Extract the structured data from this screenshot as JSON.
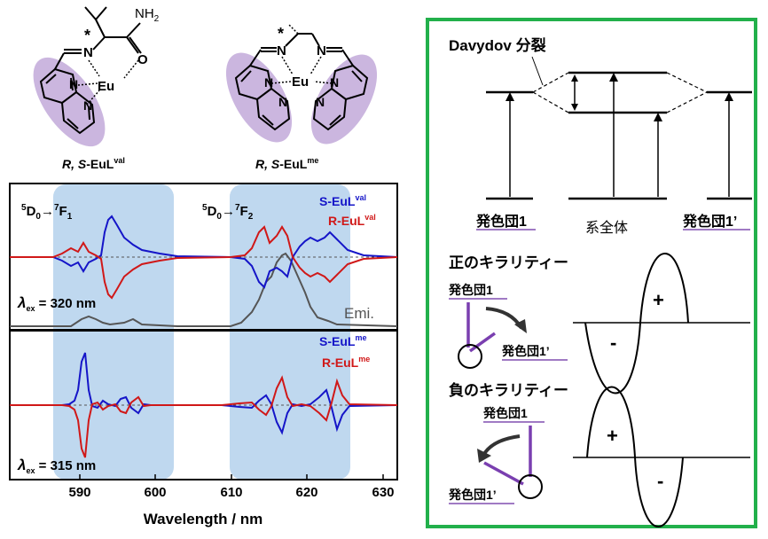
{
  "molecules": {
    "left": {
      "prefix": "R, S",
      "base": "-EuL",
      "sup": "val",
      "nh2": "NH",
      "nh2_sub": "2",
      "o": "O",
      "n_imine": "N",
      "star": "*",
      "eu": "Eu",
      "n_py1": "N",
      "n_py2": "N"
    },
    "right": {
      "prefix": "R, S",
      "base": "-EuL",
      "sup": "me",
      "star": "*",
      "eu": "Eu",
      "n_imine1": "N",
      "n_imine2": "N",
      "n_py1": "N",
      "n_py2": "N",
      "n_py3": "N",
      "n_py4": "N"
    }
  },
  "spectra": {
    "top": {
      "trans1": {
        "a": "5",
        "b": "D",
        "c": "0",
        "arrow": "→",
        "d": "7",
        "e": "F",
        "f": "1"
      },
      "trans2": {
        "a": "5",
        "b": "D",
        "c": "0",
        "arrow": "→",
        "d": "7",
        "e": "F",
        "f": "2"
      },
      "legend_s": {
        "base": "S-EuL",
        "sup": "val"
      },
      "legend_r": {
        "base": "R-EuL",
        "sup": "val"
      },
      "lambda": {
        "sym": "λ",
        "sub": "ex",
        "val": " = 320 nm"
      },
      "emi": "Emi."
    },
    "bottom": {
      "legend_s": {
        "base": "S-EuL",
        "sup": "me"
      },
      "legend_r": {
        "base": "R-EuL",
        "sup": "me"
      },
      "lambda": {
        "sym": "λ",
        "sub": "ex",
        "val": " = 315 nm"
      }
    },
    "x_axis": {
      "label": "Wavelength / nm",
      "ticks": [
        "590",
        "600",
        "610",
        "620",
        "630"
      ]
    }
  },
  "energy_diagram": {
    "title": "Davydov 分裂",
    "chromophore1": "発色団1",
    "whole": "系全体",
    "chromophore1p": "発色団1’"
  },
  "chirality": {
    "positive": {
      "title": "正のキラリティー",
      "label1": "発色団1",
      "label2": "発色団1’",
      "sign_pos": "+",
      "sign_neg": "-"
    },
    "negative": {
      "title": "負のキラリティー",
      "label1": "発色団1",
      "label2": "発色団1’",
      "sign_pos": "+",
      "sign_neg": "-"
    }
  },
  "colors": {
    "s_series": "#1515c8",
    "r_series": "#d01818",
    "emission": "#555555",
    "highlight": "#a9cbea",
    "box_border": "#22b04b",
    "purple": "#a07ac4"
  }
}
